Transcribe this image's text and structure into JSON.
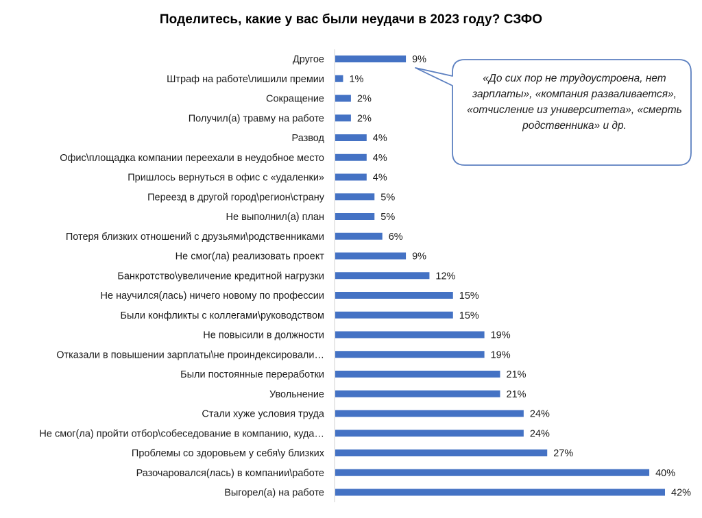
{
  "chart_data": {
    "type": "bar",
    "orientation": "horizontal",
    "title": "Поделитесь, какие у вас были неудачи в 2023 году? СЗФО",
    "categories": [
      "Другое",
      "Штраф на работе\\лишили премии",
      "Сокращение",
      "Получил(а) травму на работе",
      "Развод",
      "Офис\\площадка компании переехали в неудобное место",
      "Пришлось вернуться в офис с «удаленки»",
      "Переезд в другой город\\регион\\страну",
      "Не выполнил(а) план",
      "Потеря близких отношений с друзьями\\родственниками",
      "Не смог(ла) реализовать проект",
      "Банкротство\\увеличение кредитной нагрузки",
      "Не научился(лась) ничего новому по профессии",
      "Были конфликты с коллегами\\руководством",
      "Не повысили в должности",
      "Отказали в повышении зарплаты\\не проиндексировали…",
      "Были постоянные переработки",
      "Увольнение",
      "Стали хуже условия труда",
      "Не смог(ла) пройти отбор\\собеседование в компанию, куда…",
      "Проблемы со здоровьем у себя\\у близких",
      "Разочаровался(лась) в компании\\работе",
      "Выгорел(а) на работе"
    ],
    "values": [
      9,
      1,
      2,
      2,
      4,
      4,
      4,
      5,
      5,
      6,
      9,
      12,
      15,
      15,
      19,
      19,
      21,
      21,
      24,
      24,
      27,
      40,
      42
    ],
    "value_labels": [
      "9%",
      "1%",
      "2%",
      "2%",
      "4%",
      "4%",
      "4%",
      "5%",
      "5%",
      "6%",
      "9%",
      "12%",
      "15%",
      "15%",
      "19%",
      "19%",
      "21%",
      "21%",
      "24%",
      "24%",
      "27%",
      "40%",
      "42%"
    ],
    "value_unit": "%",
    "xlim": [
      0,
      42
    ],
    "grid": false,
    "legend": "none",
    "bar_color": "#4472c4",
    "annotation": "«До сих пор не трудоустроена, нет зарплаты», «компания разваливается», «отчисление из университета», «смерть родственника» и др.",
    "annotation_target": "Другое"
  }
}
